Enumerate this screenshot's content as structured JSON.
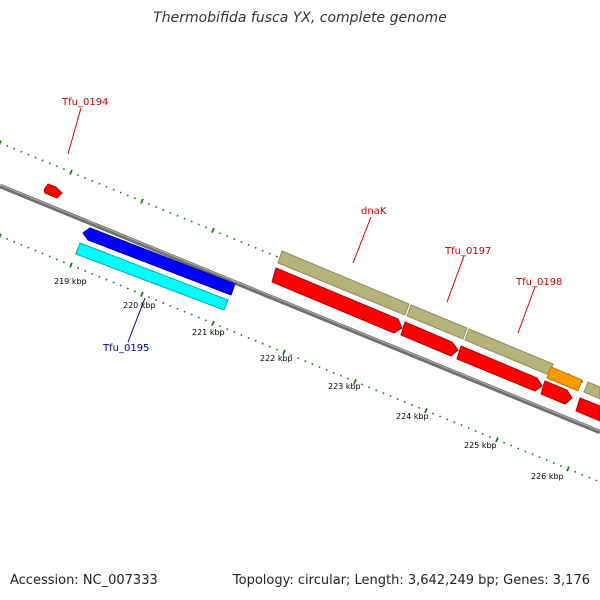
{
  "title": "Thermobifida fusca YX, complete genome",
  "footer": {
    "accession": "Accession: NC_007333",
    "summary": "Topology: circular; Length: 3,642,249 bp; Genes: 3,176"
  },
  "colors": {
    "backbone": "#808080",
    "tick": "#1a7a1a",
    "forward_cds": "#ff0000",
    "forward_gene": "#b5b27a",
    "orange_feature": "#ff9900",
    "reverse_cds": "#0000ff",
    "reverse_gene": "#00ffff",
    "label_forward": "#cc0000",
    "label_reverse": "#000099"
  },
  "scale_labels": [
    {
      "kbp": 219,
      "text": "219 kbp"
    },
    {
      "kbp": 220,
      "text": "220 kbp"
    },
    {
      "kbp": 221,
      "text": "221 kbp"
    },
    {
      "kbp": 222,
      "text": "222 kbp"
    },
    {
      "kbp": 223,
      "text": "223 kbp"
    },
    {
      "kbp": 224,
      "text": "224 kbp"
    },
    {
      "kbp": 225,
      "text": "225 kbp"
    },
    {
      "kbp": 226,
      "text": "226 kbp"
    }
  ],
  "gene_labels": [
    {
      "text": "Tfu_0194",
      "strand": "forward"
    },
    {
      "text": "dnaK",
      "strand": "forward"
    },
    {
      "text": "Tfu_0197",
      "strand": "forward"
    },
    {
      "text": "Tfu_0198",
      "strand": "forward"
    },
    {
      "text": "Tfu_0195",
      "strand": "reverse"
    }
  ]
}
